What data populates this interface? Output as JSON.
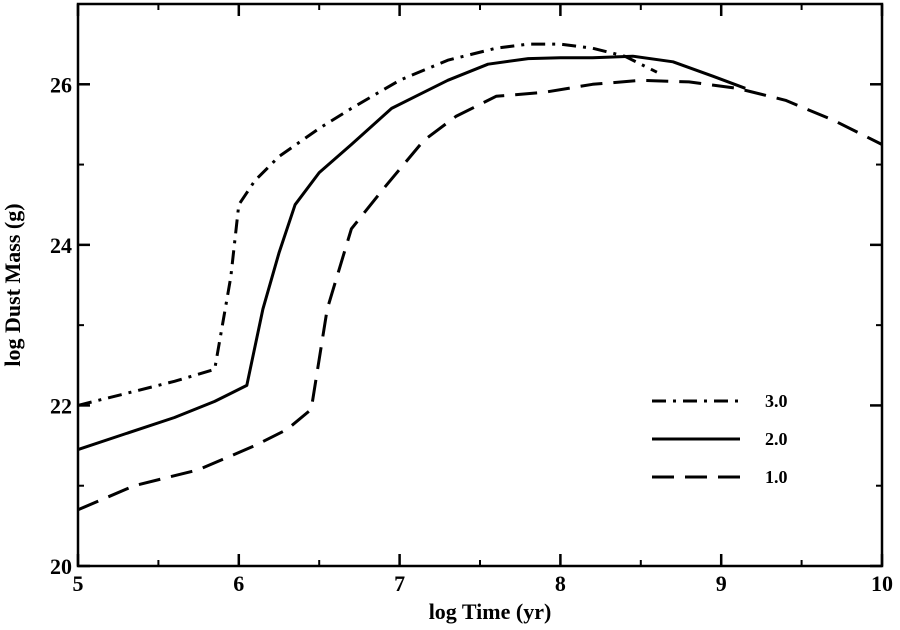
{
  "chart_data": {
    "type": "line",
    "title": "",
    "xlabel": "log Time (yr)",
    "ylabel": "log Dust Mass (g)",
    "xlim": [
      5,
      10
    ],
    "ylim": [
      20,
      27
    ],
    "xticks": [
      5,
      6,
      7,
      8,
      9,
      10
    ],
    "yticks": [
      20,
      22,
      24,
      26
    ],
    "xtick_labels": [
      "5",
      "6",
      "7",
      "8",
      "9",
      "10"
    ],
    "ytick_labels": [
      "20",
      "22",
      "24",
      "26"
    ],
    "grid": false,
    "legend_position": "bottom-right",
    "series": [
      {
        "name": "3.0",
        "style": "dash-dot",
        "x": [
          5.0,
          5.3,
          5.6,
          5.85,
          5.95,
          6.0,
          6.1,
          6.25,
          6.5,
          6.7,
          7.0,
          7.3,
          7.6,
          7.8,
          8.0,
          8.2,
          8.4,
          8.6
        ],
        "y": [
          22.0,
          22.15,
          22.3,
          22.45,
          23.6,
          24.5,
          24.8,
          25.1,
          25.45,
          25.7,
          26.05,
          26.3,
          26.45,
          26.5,
          26.5,
          26.45,
          26.35,
          26.15
        ]
      },
      {
        "name": "2.0",
        "style": "solid",
        "x": [
          5.0,
          5.3,
          5.6,
          5.85,
          5.95,
          6.05,
          6.15,
          6.25,
          6.35,
          6.5,
          6.7,
          6.95,
          7.1,
          7.3,
          7.55,
          7.8,
          8.0,
          8.2,
          8.45,
          8.7,
          8.95,
          9.15
        ],
        "y": [
          21.45,
          21.65,
          21.85,
          22.05,
          22.15,
          22.25,
          23.2,
          23.9,
          24.5,
          24.9,
          25.25,
          25.7,
          25.85,
          26.05,
          26.25,
          26.32,
          26.33,
          26.33,
          26.35,
          26.28,
          26.1,
          25.95
        ]
      },
      {
        "name": "1.0",
        "style": "dashed",
        "x": [
          5.0,
          5.35,
          5.75,
          6.1,
          6.3,
          6.45,
          6.55,
          6.7,
          6.9,
          7.15,
          7.35,
          7.6,
          7.9,
          8.2,
          8.5,
          8.8,
          9.1,
          9.4,
          9.7,
          10.0
        ],
        "y": [
          20.7,
          21.0,
          21.2,
          21.5,
          21.7,
          21.95,
          23.2,
          24.2,
          24.7,
          25.3,
          25.6,
          25.85,
          25.9,
          26.0,
          26.05,
          26.03,
          25.95,
          25.8,
          25.55,
          25.25
        ]
      }
    ]
  }
}
